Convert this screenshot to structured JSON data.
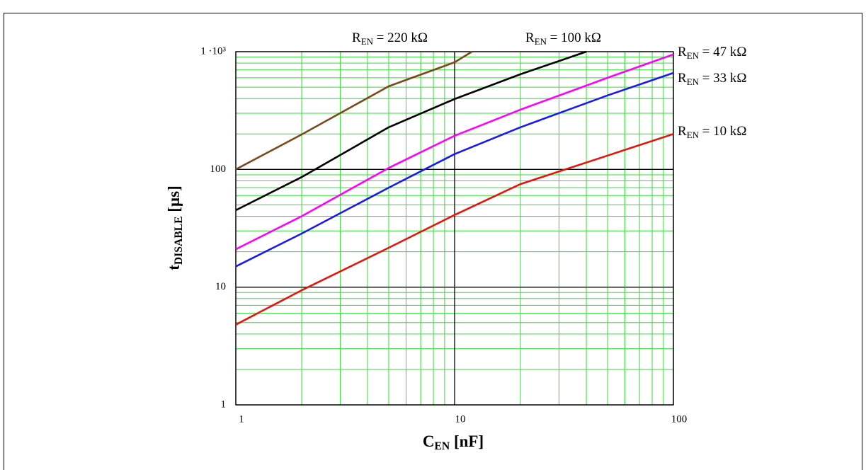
{
  "chart_data": {
    "type": "line",
    "xlabel": "CEN [nF]",
    "ylabel": "tDISABLE [µs]",
    "xscale": "log",
    "yscale": "log",
    "xlim": [
      1,
      100
    ],
    "ylim": [
      1,
      1000
    ],
    "xticks": [
      1,
      10,
      100
    ],
    "yticks": [
      1,
      10,
      100,
      {
        "value": 1000,
        "label": "1 ·10³"
      }
    ],
    "grid": true,
    "major_grid_color": "#000000",
    "minor_grid_color": "#33dd33",
    "series": [
      {
        "name": "REN = 220 kΩ",
        "color": "#7a4a1c",
        "x": [
          1,
          2,
          5,
          10,
          12
        ],
        "values": [
          100,
          198,
          508,
          812,
          1000
        ]
      },
      {
        "name": "REN = 100 kΩ",
        "color": "#000000",
        "x": [
          1,
          2,
          5,
          10,
          20,
          40
        ],
        "values": [
          45,
          86,
          228,
          396,
          643,
          1000
        ]
      },
      {
        "name": "REN = 47 kΩ",
        "color": "#ff00ff",
        "x": [
          1,
          2,
          5,
          10,
          20,
          50,
          100
        ],
        "values": [
          21,
          40,
          103,
          193,
          322,
          600,
          948
        ]
      },
      {
        "name": "REN = 33 kΩ",
        "color": "#1a1aee",
        "x": [
          1,
          2,
          5,
          10,
          20,
          50,
          100
        ],
        "values": [
          15,
          28.5,
          70,
          135,
          228,
          425,
          660
        ]
      },
      {
        "name": "REN = 10 kΩ",
        "color": "#e3160c",
        "x": [
          1,
          2,
          5,
          10,
          20,
          50,
          100
        ],
        "values": [
          4.8,
          9.4,
          21.6,
          41,
          75,
          131,
          200
        ]
      }
    ]
  }
}
